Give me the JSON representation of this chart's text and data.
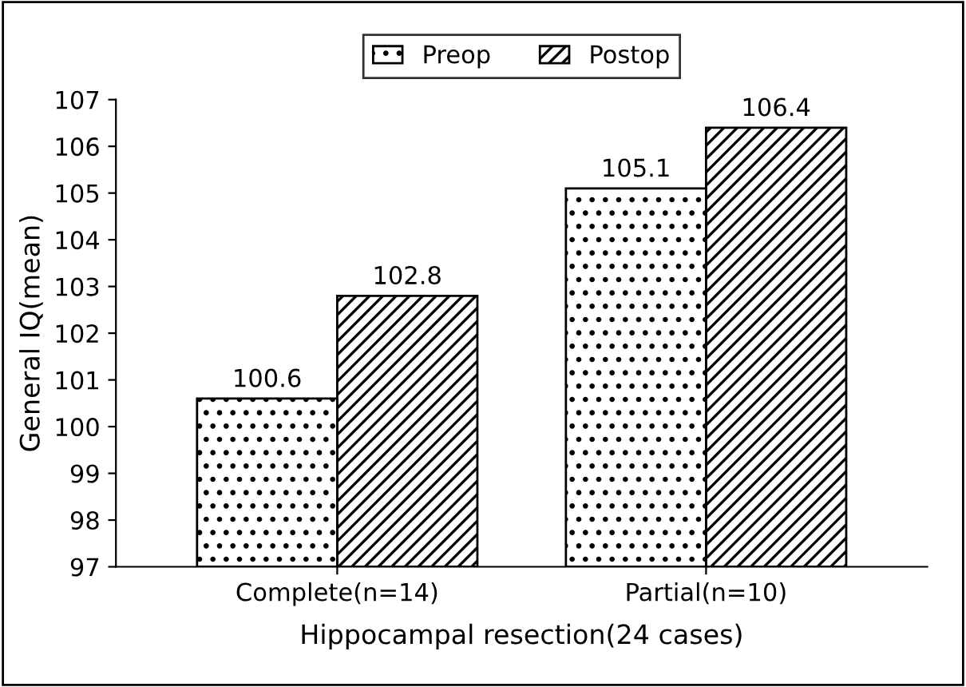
{
  "chart_data": {
    "type": "bar",
    "xlabel": "Hippocampal resection(24 cases)",
    "ylabel": "General IQ(mean)",
    "categories": [
      "Complete(n=14)",
      "Partial(n=10)"
    ],
    "series": [
      {
        "name": "Preop",
        "color": "#000000",
        "values": [
          100.6,
          105.1
        ]
      },
      {
        "name": "Postop",
        "color": "#000000",
        "values": [
          102.8,
          106.4
        ]
      }
    ],
    "ylim": [
      97,
      107
    ],
    "yticks": [
      97,
      98,
      99,
      100,
      101,
      102,
      103,
      104,
      105,
      106,
      107
    ],
    "data_labels": true,
    "grid": false,
    "legend": "top"
  }
}
